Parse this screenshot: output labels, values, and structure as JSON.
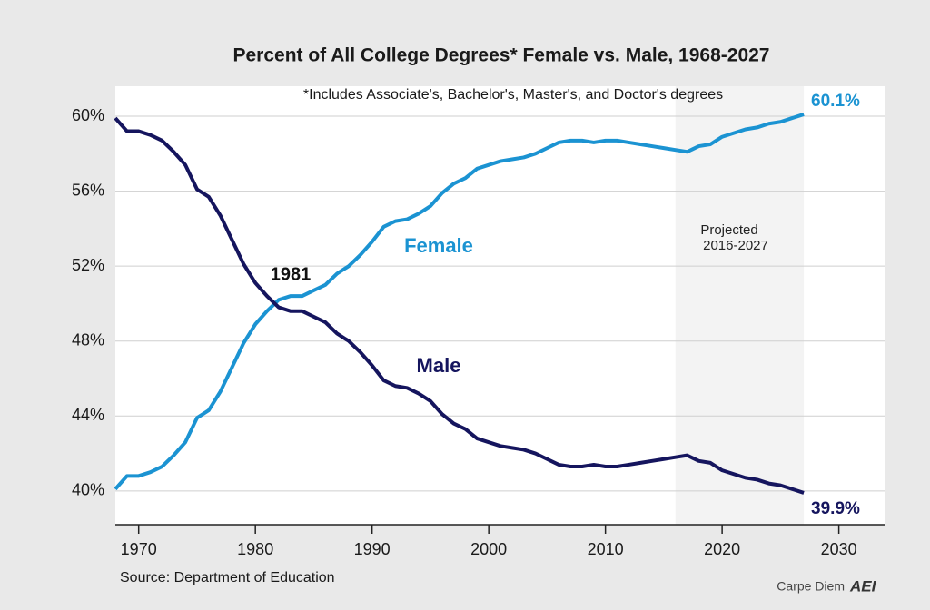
{
  "chart_data": {
    "type": "line",
    "title": "Percent of All College Degrees* Female vs. Male, 1968-2027",
    "footnote": "*Includes Associate's, Bachelor's, Master's, and Doctor's degrees",
    "source": "Source: Department of Education",
    "credit": "Carpe Diem",
    "logo": "AEI",
    "x": [
      1968,
      1969,
      1970,
      1971,
      1972,
      1973,
      1974,
      1975,
      1976,
      1977,
      1978,
      1979,
      1980,
      1981,
      1982,
      1983,
      1984,
      1985,
      1986,
      1987,
      1988,
      1989,
      1990,
      1991,
      1992,
      1993,
      1994,
      1995,
      1996,
      1997,
      1998,
      1999,
      2000,
      2001,
      2002,
      2003,
      2004,
      2005,
      2006,
      2007,
      2008,
      2009,
      2010,
      2011,
      2012,
      2013,
      2014,
      2015,
      2016,
      2017,
      2018,
      2019,
      2020,
      2021,
      2022,
      2023,
      2024,
      2025,
      2026,
      2027
    ],
    "series": [
      {
        "name": "Female",
        "color": "#1b93d2",
        "values": [
          40.1,
          40.8,
          40.8,
          41.0,
          41.3,
          41.9,
          42.6,
          43.9,
          44.3,
          45.3,
          46.6,
          47.9,
          48.9,
          49.6,
          50.2,
          50.4,
          50.4,
          50.7,
          51.0,
          51.6,
          52.0,
          52.6,
          53.3,
          54.1,
          54.4,
          54.5,
          54.8,
          55.2,
          55.9,
          56.4,
          56.7,
          57.2,
          57.4,
          57.6,
          57.7,
          57.8,
          58.0,
          58.3,
          58.6,
          58.7,
          58.7,
          58.6,
          58.7,
          58.7,
          58.6,
          58.5,
          58.4,
          58.3,
          58.2,
          58.1,
          58.4,
          58.5,
          58.9,
          59.1,
          59.3,
          59.4,
          59.6,
          59.7,
          59.9,
          60.1
        ],
        "value_labels": [
          null,
          null,
          null,
          null,
          null,
          null,
          null,
          null,
          null,
          null,
          null,
          null,
          null,
          null,
          null,
          null,
          null,
          null,
          null,
          null,
          null,
          null,
          null,
          null,
          null,
          null,
          null,
          null,
          null,
          null,
          null,
          null,
          null,
          null,
          null,
          null,
          null,
          null,
          null,
          null,
          null,
          null,
          null,
          null,
          null,
          null,
          null,
          null,
          null,
          null,
          null,
          null,
          null,
          null,
          null,
          null,
          null,
          null,
          null,
          "60.1%"
        ]
      },
      {
        "name": "Male",
        "color": "#15155e",
        "values": [
          59.9,
          59.2,
          59.2,
          59.0,
          58.7,
          58.1,
          57.4,
          56.1,
          55.7,
          54.7,
          53.4,
          52.1,
          51.1,
          50.4,
          49.8,
          49.6,
          49.6,
          49.3,
          49.0,
          48.4,
          48.0,
          47.4,
          46.7,
          45.9,
          45.6,
          45.5,
          45.2,
          44.8,
          44.1,
          43.6,
          43.3,
          42.8,
          42.6,
          42.4,
          42.3,
          42.2,
          42.0,
          41.7,
          41.4,
          41.3,
          41.3,
          41.4,
          41.3,
          41.3,
          41.4,
          41.5,
          41.6,
          41.7,
          41.8,
          41.9,
          41.6,
          41.5,
          41.1,
          40.9,
          40.7,
          40.6,
          40.4,
          40.3,
          40.1,
          39.9
        ],
        "value_labels": [
          null,
          null,
          null,
          null,
          null,
          null,
          null,
          null,
          null,
          null,
          null,
          null,
          null,
          null,
          null,
          null,
          null,
          null,
          null,
          null,
          null,
          null,
          null,
          null,
          null,
          null,
          null,
          null,
          null,
          null,
          null,
          null,
          null,
          null,
          null,
          null,
          null,
          null,
          null,
          null,
          null,
          null,
          null,
          null,
          null,
          null,
          null,
          null,
          null,
          null,
          null,
          null,
          null,
          null,
          null,
          null,
          null,
          null,
          null,
          "39.9%"
        ]
      }
    ],
    "annotations": [
      "1981",
      "Female",
      "Male",
      "Projected",
      "2016-2027"
    ],
    "projection_range": [
      2016,
      2027
    ],
    "xlim": [
      1968,
      2034
    ],
    "xticks": [
      1970,
      1980,
      1990,
      2000,
      2010,
      2020,
      2030
    ],
    "ylim": [
      38.2,
      61.6
    ],
    "yticks": [
      {
        "value": 40,
        "label": "40%"
      },
      {
        "value": 44,
        "label": "44%"
      },
      {
        "value": 48,
        "label": "48%"
      },
      {
        "value": 52,
        "label": "52%"
      },
      {
        "value": 56,
        "label": "56%"
      },
      {
        "value": 60,
        "label": "60%"
      }
    ],
    "grid": true
  }
}
